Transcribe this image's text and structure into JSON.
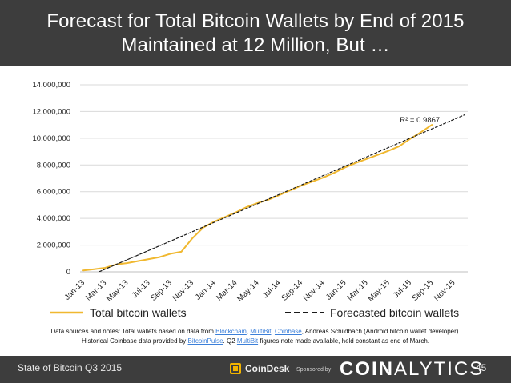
{
  "header": {
    "title_line1": "Forecast for Total Bitcoin Wallets by End of 2015",
    "title_line2": "Maintained at 12 Million, But …"
  },
  "chart_data": {
    "type": "line",
    "title": "",
    "xlabel": "",
    "ylabel": "",
    "ylim": [
      0,
      14000000
    ],
    "yticks": [
      0,
      2000000,
      4000000,
      6000000,
      8000000,
      10000000,
      12000000,
      14000000
    ],
    "ytick_labels": [
      "0",
      "2,000,000",
      "4,000,000",
      "6,000,000",
      "8,000,000",
      "10,000,000",
      "12,000,000",
      "14,000,000"
    ],
    "x_tick_labels": [
      "Jan-13",
      "Mar-13",
      "May-13",
      "Jul-13",
      "Sep-13",
      "Nov-13",
      "Jan-14",
      "Mar-14",
      "May-14",
      "Jul-14",
      "Sep-14",
      "Nov-14",
      "Jan-15",
      "Mar-15",
      "May-15",
      "Jul-15",
      "Sep-15",
      "Nov-15"
    ],
    "x_range_months": [
      0,
      35
    ],
    "grid": true,
    "series": [
      {
        "name": "Total bitcoin wallets",
        "color": "#f0b830",
        "style": "solid",
        "points": [
          [
            0,
            100000
          ],
          [
            1,
            200000
          ],
          [
            2,
            300000
          ],
          [
            3,
            550000
          ],
          [
            4,
            650000
          ],
          [
            5,
            800000
          ],
          [
            6,
            950000
          ],
          [
            7,
            1100000
          ],
          [
            8,
            1350000
          ],
          [
            9,
            1500000
          ],
          [
            10,
            2500000
          ],
          [
            11,
            3300000
          ],
          [
            12,
            3750000
          ],
          [
            13,
            4100000
          ],
          [
            14,
            4450000
          ],
          [
            15,
            4850000
          ],
          [
            16,
            5150000
          ],
          [
            17,
            5400000
          ],
          [
            18,
            5750000
          ],
          [
            19,
            6100000
          ],
          [
            20,
            6450000
          ],
          [
            21,
            6750000
          ],
          [
            22,
            7050000
          ],
          [
            23,
            7400000
          ],
          [
            24,
            7800000
          ],
          [
            25,
            8150000
          ],
          [
            26,
            8450000
          ],
          [
            27,
            8750000
          ],
          [
            28,
            9050000
          ],
          [
            29,
            9400000
          ],
          [
            30,
            9950000
          ],
          [
            31,
            10450000
          ],
          [
            32,
            11000000
          ]
        ]
      },
      {
        "name": "Forecasted bitcoin wallets",
        "color": "#1a1a1a",
        "style": "dashed",
        "points": [
          [
            0,
            -500000
          ],
          [
            35,
            11750000
          ]
        ]
      }
    ],
    "annotations": [
      {
        "text": "R² = 0.9867",
        "x": 32,
        "y": 11200000
      }
    ]
  },
  "legend": {
    "item1": "Total bitcoin wallets",
    "item2": "Forecasted bitcoin wallets",
    "item1_color": "#f0b830",
    "item2_color": "#1a1a1a"
  },
  "notes": {
    "line1_prefix": "Data sources and notes: Total wallets based on data from ",
    "link_blockchain": "Blockchain",
    "sep1": ", ",
    "link_multibit": "MultiBit",
    "sep2": ", ",
    "link_coinbase": "Coinbase",
    "line1_suffix": ", Andreas Schildbach (Android bitcoin wallet developer).",
    "line2_prefix": "Historical Coinbase data provided by ",
    "link_bitcoinpulse": "BitcoinPulse",
    "line2_mid": ". Q2 ",
    "link_multibit2": "MultiBit",
    "line2_suffix": " figures note made available, held constant as end of March."
  },
  "footer": {
    "left_text": "State of Bitcoin Q3 2015",
    "coindesk": "CoinDesk",
    "sponsored": "Sponsored by",
    "coinalytics_bold": "COIN",
    "coinalytics_thin": "ALYTICS",
    "page_number": "45",
    "coindesk_color": "#f2b400",
    "bar_color": "#3d3d3d"
  }
}
